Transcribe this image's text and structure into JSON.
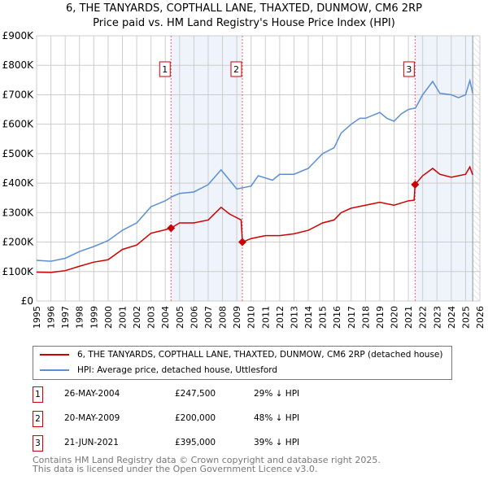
{
  "title": "6, THE TANYARDS, COPTHALL LANE, THAXTED, DUNMOW, CM6 2RP",
  "subtitle": "Price paid vs. HM Land Registry's House Price Index (HPI)",
  "chart_data": {
    "type": "line",
    "xlim": [
      1995,
      2026
    ],
    "ylim": [
      0,
      900000
    ],
    "yticks": [
      {
        "v": 0,
        "label": "£0"
      },
      {
        "v": 100000,
        "label": "£100K"
      },
      {
        "v": 200000,
        "label": "£200K"
      },
      {
        "v": 300000,
        "label": "£300K"
      },
      {
        "v": 400000,
        "label": "£400K"
      },
      {
        "v": 500000,
        "label": "£500K"
      },
      {
        "v": 600000,
        "label": "£600K"
      },
      {
        "v": 700000,
        "label": "£700K"
      },
      {
        "v": 800000,
        "label": "£800K"
      },
      {
        "v": 900000,
        "label": "£900K"
      }
    ],
    "xticks": [
      "1995",
      "1996",
      "1997",
      "1998",
      "1999",
      "2000",
      "2001",
      "2002",
      "2003",
      "2004",
      "2005",
      "2006",
      "2007",
      "2008",
      "2009",
      "2010",
      "2011",
      "2012",
      "2013",
      "2014",
      "2015",
      "2016",
      "2017",
      "2018",
      "2019",
      "2020",
      "2021",
      "2022",
      "2023",
      "2024",
      "2025",
      "2026"
    ],
    "series": [
      {
        "name": "6, THE TANYARDS, COPTHALL LANE, THAXTED, DUNMOW, CM6 2RP (detached house)",
        "color": "#cc0000",
        "x": [
          1995,
          1996,
          1997,
          1998,
          1999,
          2000,
          2001,
          2002,
          2003,
          2004,
          2004.4,
          2005,
          2006,
          2007,
          2007.9,
          2008.5,
          2009.3,
          2009.4,
          2010,
          2011,
          2012,
          2013,
          2014,
          2015,
          2015.8,
          2016.3,
          2017,
          2018,
          2019,
          2020,
          2021,
          2021.4,
          2021.47,
          2022,
          2022.7,
          2023.2,
          2024,
          2025,
          2025.3,
          2025.5
        ],
        "y": [
          98000,
          97000,
          103000,
          118000,
          132000,
          140000,
          175000,
          190000,
          230000,
          242000,
          247500,
          265000,
          265000,
          275000,
          318000,
          295000,
          275000,
          200000,
          212000,
          222000,
          222000,
          228000,
          240000,
          265000,
          275000,
          300000,
          315000,
          325000,
          335000,
          325000,
          340000,
          342000,
          395000,
          425000,
          450000,
          430000,
          420000,
          430000,
          455000,
          428000
        ]
      },
      {
        "name": "HPI: Average price, detached house, Uttlesford",
        "color": "#5b8fd0",
        "x": [
          1995,
          1996,
          1997,
          1998,
          1999,
          2000,
          2001,
          2002,
          2003,
          2004,
          2004.5,
          2005,
          2006,
          2007,
          2007.9,
          2008.5,
          2009,
          2010,
          2010.5,
          2011.5,
          2012,
          2013,
          2014,
          2015,
          2015.8,
          2016.3,
          2017,
          2017.6,
          2018,
          2019,
          2019.5,
          2020,
          2020.5,
          2021,
          2021.5,
          2022,
          2022.7,
          2023.2,
          2024,
          2024.5,
          2025,
          2025.3,
          2025.5
        ],
        "y": [
          138000,
          135000,
          145000,
          168000,
          185000,
          205000,
          240000,
          265000,
          320000,
          340000,
          355000,
          365000,
          370000,
          395000,
          445000,
          410000,
          380000,
          390000,
          425000,
          410000,
          430000,
          430000,
          450000,
          500000,
          520000,
          570000,
          600000,
          620000,
          620000,
          640000,
          620000,
          610000,
          635000,
          650000,
          655000,
          700000,
          745000,
          705000,
          700000,
          690000,
          700000,
          748000,
          705000
        ]
      }
    ],
    "sales": [
      {
        "label": "1",
        "x": 2004.4,
        "y": 247500
      },
      {
        "label": "2",
        "x": 2009.39,
        "y": 200000
      },
      {
        "label": "3",
        "x": 2021.47,
        "y": 395000
      }
    ],
    "forecast_start": 2025.5
  },
  "legend": {
    "property": "6, THE TANYARDS, COPTHALL LANE, THAXTED, DUNMOW, CM6 2RP (detached house)",
    "hpi": "HPI: Average price, detached house, Uttlesford"
  },
  "sales_table": [
    {
      "num": "1",
      "date": "26-MAY-2004",
      "price": "£247,500",
      "diff": "29% ↓ HPI"
    },
    {
      "num": "2",
      "date": "20-MAY-2009",
      "price": "£200,000",
      "diff": "48% ↓ HPI"
    },
    {
      "num": "3",
      "date": "21-JUN-2021",
      "price": "£395,000",
      "diff": "39% ↓ HPI"
    }
  ],
  "footer": {
    "line1": "Contains HM Land Registry data © Crown copyright and database right 2025.",
    "line2": "This data is licensed under the Open Government Licence v3.0."
  }
}
